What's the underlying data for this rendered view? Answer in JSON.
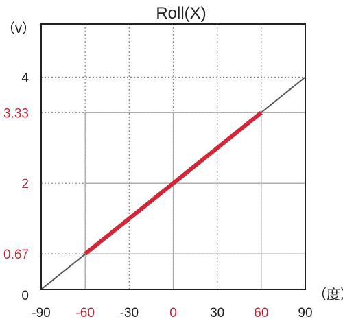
{
  "chart_data": {
    "type": "line",
    "title": "Roll(X)",
    "ylabel": "（v）",
    "xlabel": "（度）",
    "xlim": [
      -90,
      90
    ],
    "ylim": [
      0,
      5
    ],
    "grid": true,
    "x_ticks": [
      {
        "value": -90,
        "label": "-90",
        "highlight": false
      },
      {
        "value": -60,
        "label": "-60",
        "highlight": true
      },
      {
        "value": -30,
        "label": "-30",
        "highlight": false
      },
      {
        "value": 0,
        "label": "0",
        "highlight": true
      },
      {
        "value": 30,
        "label": "30",
        "highlight": false
      },
      {
        "value": 60,
        "label": "60",
        "highlight": true
      },
      {
        "value": 90,
        "label": "90",
        "highlight": false
      }
    ],
    "y_ticks": [
      {
        "value": 0,
        "label": "0",
        "highlight": false
      },
      {
        "value": 0.67,
        "label": "0.67",
        "highlight": true
      },
      {
        "value": 2,
        "label": "2",
        "highlight": true
      },
      {
        "value": 3.33,
        "label": "3.33",
        "highlight": true
      },
      {
        "value": 4,
        "label": "4",
        "highlight": false
      }
    ],
    "series": [
      {
        "points": [
          [
            -90,
            0
          ],
          [
            90,
            4
          ]
        ],
        "color": "#555555"
      },
      {
        "points": [
          [
            -60,
            0.67
          ],
          [
            60,
            3.33
          ]
        ],
        "color": "#d0283a"
      }
    ]
  },
  "colors": {
    "highlight": "#c0283a",
    "text": "#222222",
    "frame": "#222222",
    "grid": "#888888"
  }
}
